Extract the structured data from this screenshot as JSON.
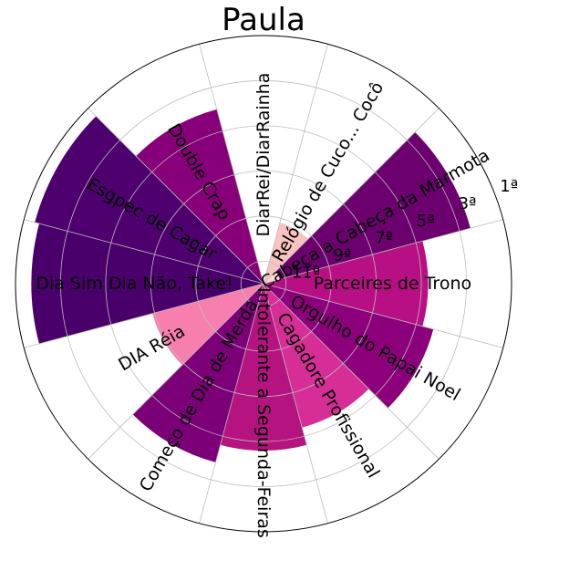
{
  "chart_data": {
    "type": "bar",
    "subtype": "polar",
    "title": "Paula",
    "radial_ticks": [
      "11ª",
      "9ª",
      "7ª",
      "5ª",
      "3ª",
      "1ª"
    ],
    "grid": true,
    "bars": [
      {
        "label": "Cabeça a Cabeça da Marmota",
        "value": 9.5,
        "color": "#6b006e"
      },
      {
        "label": "Parceires de Trono",
        "value": 7.3,
        "color": "#b80f85"
      },
      {
        "label": "Orgulho do Papai Noel",
        "value": 7.8,
        "color": "#8c007c"
      },
      {
        "label": "Cagadore Profissional",
        "value": 6.6,
        "color": "#d62e96"
      },
      {
        "label": "Intolerante a Segunda-Feiras",
        "value": 7.4,
        "color": "#b5137f"
      },
      {
        "label": "Começo de Dia de Merda",
        "value": 8.2,
        "color": "#7c0078"
      },
      {
        "label": "DIA Réia",
        "value": 5.1,
        "color": "#f77fae"
      },
      {
        "label": "Dia Sim Dia Não, Take!",
        "value": 10.3,
        "color": "#4a006b"
      },
      {
        "label": "Esgpec de Cagar",
        "value": 10.5,
        "color": "#4e006e"
      },
      {
        "label": "Double Crap",
        "value": 8.0,
        "color": "#870079"
      },
      {
        "label": "DiarRei/DiarRainha",
        "value": 0,
        "color": "#ffffff"
      },
      {
        "label": "Relógio de Cuco... Cocô",
        "value": 2.8,
        "color": "#f7c4c0"
      }
    ],
    "center_bar": {
      "label": "",
      "value": 0.75,
      "color": "#fbdad4"
    }
  }
}
